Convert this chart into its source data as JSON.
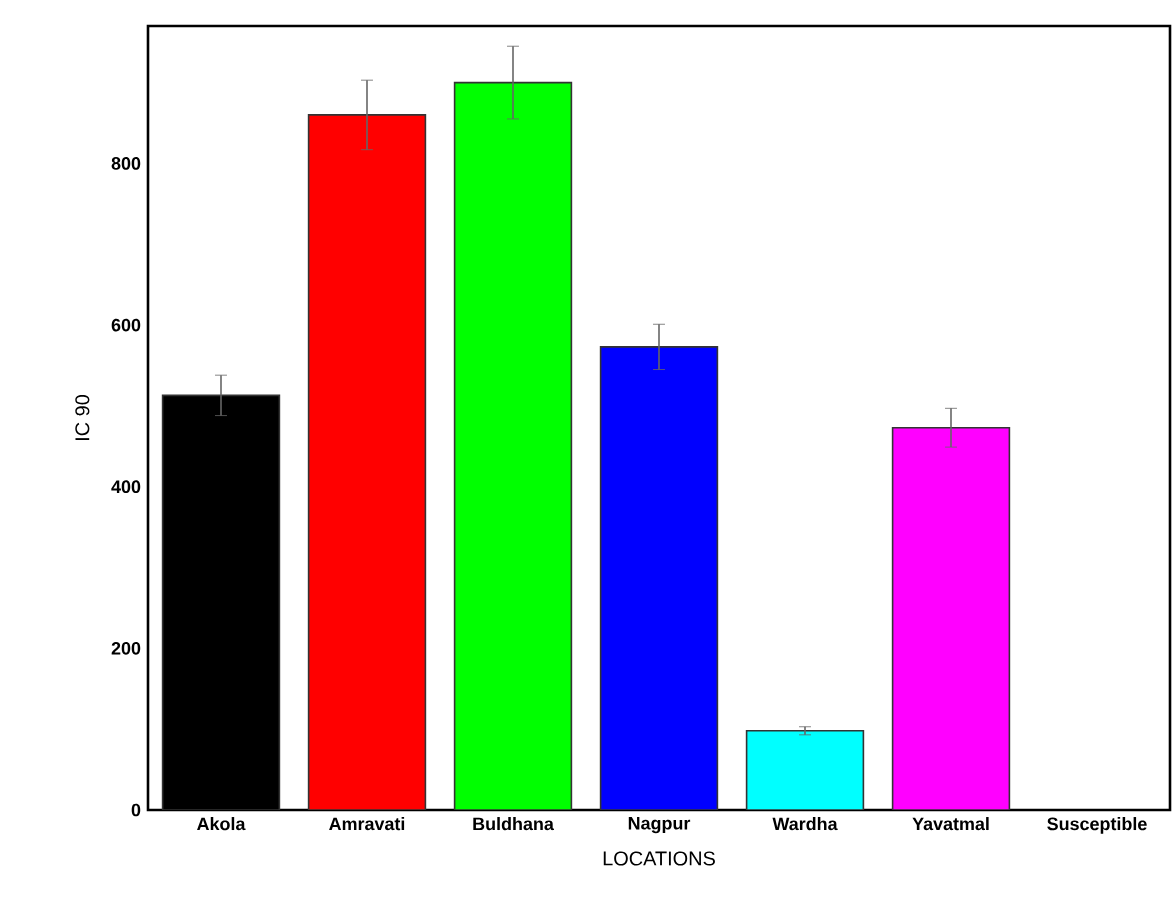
{
  "chart_data": {
    "type": "bar",
    "xlabel": "LOCATIONS",
    "ylabel": "IC 90",
    "categories": [
      "Akola",
      "Amravati",
      "Buldhana",
      "Nagpur",
      "Wardha",
      "Yavatmal",
      "Susceptible"
    ],
    "values": [
      513,
      860,
      900,
      573,
      98,
      473,
      null
    ],
    "errors": [
      25,
      43,
      45,
      28,
      5,
      24,
      null
    ],
    "colors": [
      "#000000",
      "#ff0000",
      "#00ff00",
      "#0000ff",
      "#00ffff",
      "#ff00ff",
      "#ffffff"
    ],
    "ylim": [
      0,
      970
    ],
    "yticks": [
      0,
      200,
      400,
      600,
      800
    ]
  }
}
